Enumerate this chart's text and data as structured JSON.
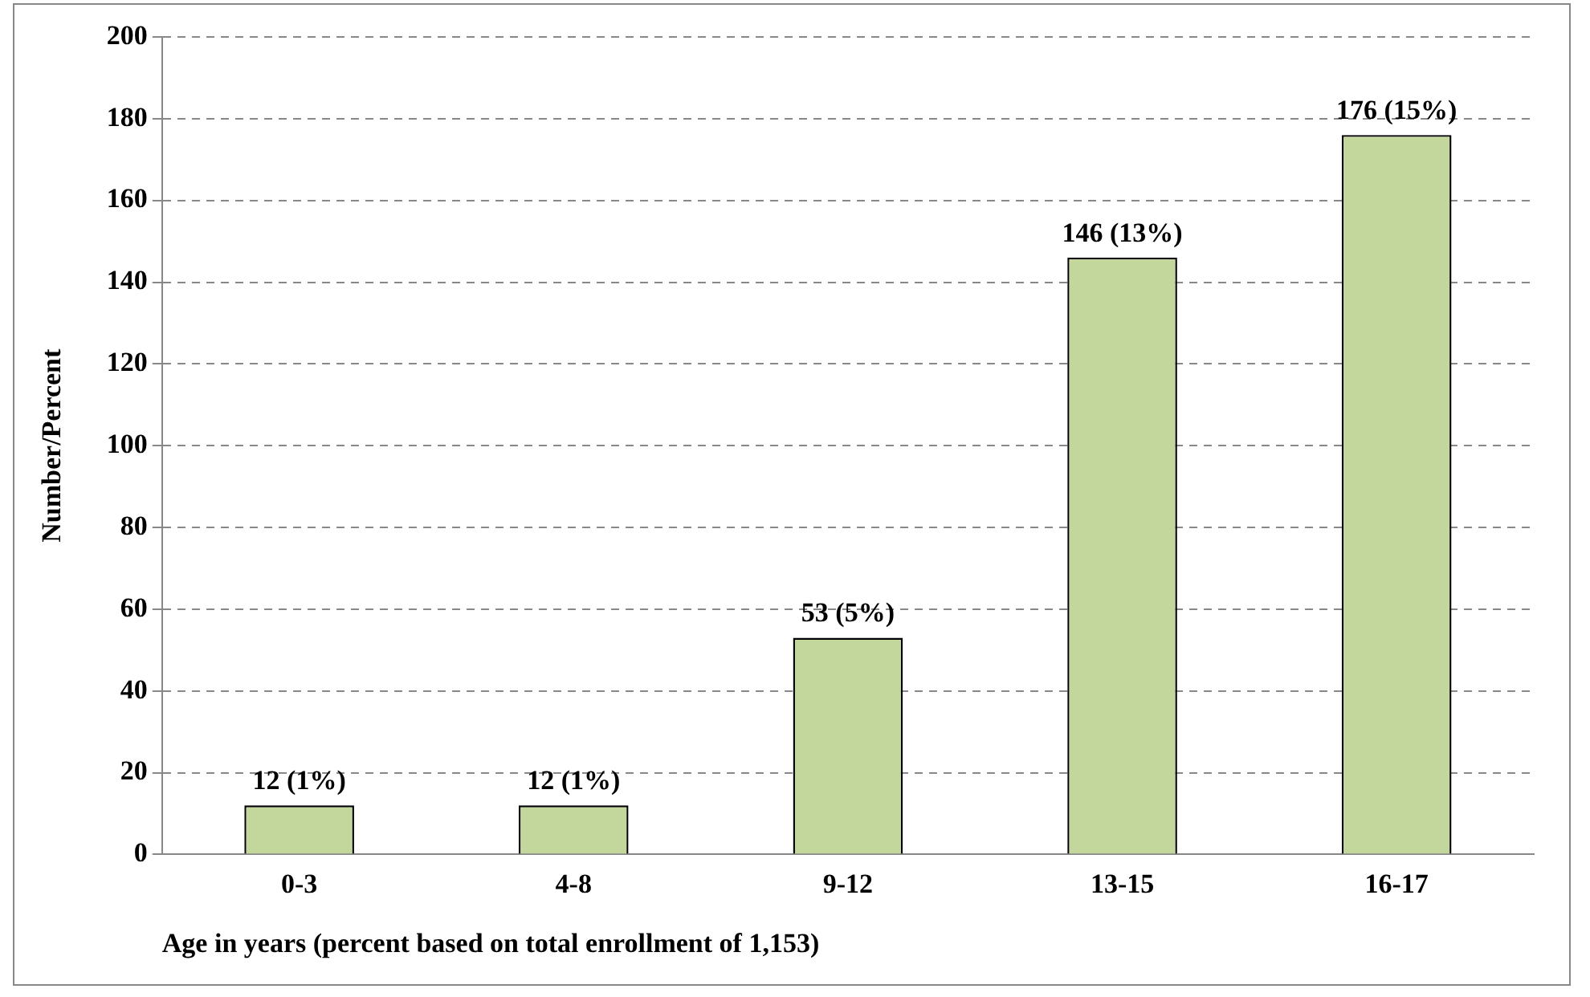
{
  "chart_data": {
    "type": "bar",
    "xlabel": "Age in years (percent based on total enrollment of 1,153)",
    "ylabel": "Number/Percent",
    "categories": [
      "0-3",
      "4-8",
      "9-12",
      "13-15",
      "16-17"
    ],
    "values": [
      12,
      12,
      53,
      146,
      176
    ],
    "color": "#c3d69b",
    "value_labels": [
      "12 (1%)",
      "12 (1%)",
      "53 (5%)",
      "146 (13%)",
      "176 (15%)"
    ],
    "ylim": [
      0,
      200
    ],
    "yticks": [
      0,
      20,
      40,
      60,
      80,
      100,
      120,
      140,
      160,
      180,
      200
    ],
    "grid": "y",
    "legend": false
  }
}
